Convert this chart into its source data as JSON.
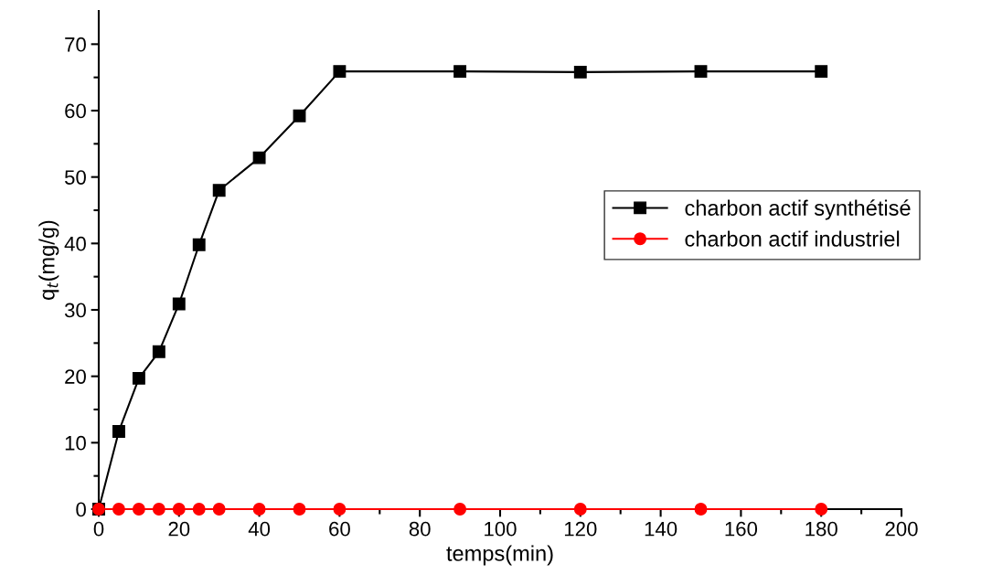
{
  "chart_data": {
    "type": "line",
    "xlabel": "temps(min)",
    "ylabel": "q$_{t}$(mg/g)",
    "x": [
      0,
      5,
      10,
      15,
      20,
      25,
      30,
      40,
      50,
      60,
      90,
      120,
      150,
      180
    ],
    "series": [
      {
        "name": "charbon actif synthétisé",
        "color": "#000000",
        "marker": "square",
        "values": [
          0,
          11.7,
          19.7,
          23.7,
          30.9,
          39.8,
          48.0,
          52.9,
          59.2,
          65.9,
          65.9,
          65.8,
          65.9,
          65.9
        ]
      },
      {
        "name": "charbon actif industriel",
        "color": "#ff0000",
        "marker": "circle",
        "values": [
          0,
          0,
          0,
          0,
          0,
          0,
          0,
          0,
          0,
          0,
          0,
          0,
          0,
          0
        ]
      }
    ],
    "xlim": [
      0,
      200
    ],
    "ylim": [
      0,
      75
    ],
    "xticks": [
      0,
      {
        "value": 10,
        "label": null
      },
      20,
      {
        "value": 30,
        "label": null
      },
      40,
      {
        "value": 50,
        "label": null
      },
      60,
      {
        "value": 70,
        "label": null
      },
      80,
      {
        "value": 90,
        "label": null
      },
      100,
      {
        "value": 110,
        "label": null
      },
      120,
      {
        "value": 130,
        "label": null
      },
      140,
      {
        "value": 150,
        "label": null
      },
      160,
      {
        "value": 170,
        "label": null
      },
      180,
      {
        "value": 190,
        "label": null
      },
      200
    ],
    "yticks": [
      0,
      {
        "value": 5,
        "label": null
      },
      10,
      {
        "value": 15,
        "label": null
      },
      20,
      {
        "value": 25,
        "label": null
      },
      30,
      {
        "value": 35,
        "label": null
      },
      40,
      {
        "value": 45,
        "label": null
      },
      50,
      {
        "value": 55,
        "label": null
      },
      60,
      {
        "value": 65,
        "label": null
      },
      70
    ],
    "grid": false,
    "legend": "right",
    "line_style": "solid"
  }
}
